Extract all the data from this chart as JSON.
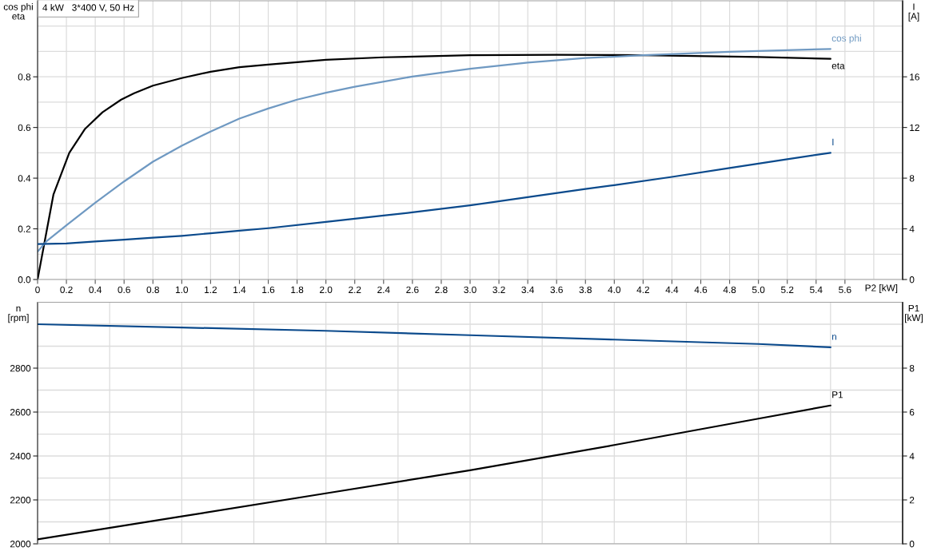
{
  "chart_data": [
    {
      "type": "line",
      "title": "4 kW   3*400 V, 50 Hz",
      "xlabel": "P2 [kW]",
      "ylabel": "cos phi\neta",
      "y2label": "I\n[A]",
      "xlim": [
        0,
        6
      ],
      "xticks": [
        0,
        0.2,
        0.4,
        0.6,
        0.8,
        {
          "value": 1,
          "label": "1.0"
        },
        1.2,
        1.4,
        1.6,
        1.8,
        {
          "value": 2,
          "label": "2.0"
        },
        2.2,
        2.4,
        2.6,
        2.8,
        {
          "value": 3,
          "label": "3.0"
        },
        3.2,
        3.4,
        3.6,
        3.8,
        {
          "value": 4,
          "label": "4.0"
        },
        4.2,
        4.4,
        4.6,
        4.8,
        {
          "value": 5,
          "label": "5.0"
        },
        5.2,
        5.4,
        5.6,
        {
          "value": 5.8,
          "label": null
        }
      ],
      "ylim": [
        0,
        1.1
      ],
      "yticks": [
        {
          "value": 0,
          "label": "0.0"
        },
        {
          "value": 0.1,
          "label": null
        },
        0.2,
        {
          "value": 0.3,
          "label": null
        },
        0.4,
        {
          "value": 0.5,
          "label": null
        },
        0.6,
        {
          "value": 0.7,
          "label": null
        },
        0.8,
        {
          "value": 0.9,
          "label": null
        },
        {
          "value": 1.0,
          "label": null
        }
      ],
      "y2lim": [
        0,
        22
      ],
      "y2ticks": [
        0,
        4,
        8,
        12,
        16
      ],
      "grid": true,
      "series": [
        {
          "name": "eta",
          "color": "#000000",
          "x": [
            0,
            0.11,
            0.22,
            0.33,
            0.45,
            0.58,
            0.67,
            0.8,
            1.0,
            1.2,
            1.4,
            1.6,
            1.8,
            2.0,
            2.4,
            3.0,
            3.6,
            4.0,
            4.2,
            5.0,
            5.5
          ],
          "values": [
            0,
            0.335,
            0.5,
            0.595,
            0.66,
            0.71,
            0.735,
            0.765,
            0.795,
            0.82,
            0.838,
            0.848,
            0.858,
            0.867,
            0.877,
            0.885,
            0.887,
            0.886,
            0.885,
            0.878,
            0.871
          ]
        },
        {
          "name": "cos phi",
          "color": "#6f99c2",
          "x": [
            0,
            0.06,
            0.2,
            0.4,
            0.6,
            0.8,
            1.0,
            1.2,
            1.4,
            1.6,
            1.8,
            2.0,
            2.2,
            2.6,
            3.0,
            3.4,
            3.8,
            4.2,
            4.8,
            5.5
          ],
          "values": [
            0.11,
            0.15,
            0.214,
            0.303,
            0.387,
            0.465,
            0.528,
            0.584,
            0.635,
            0.675,
            0.71,
            0.737,
            0.761,
            0.801,
            0.832,
            0.856,
            0.874,
            0.885,
            0.899,
            0.91
          ]
        },
        {
          "name": "I",
          "color": "#0b4a8c",
          "axis": "y2",
          "x": [
            0,
            0.2,
            0.4,
            0.6,
            0.8,
            1.0,
            1.2,
            1.4,
            1.6,
            2.0,
            2.4,
            2.6,
            3.0,
            3.4,
            3.8,
            4.0,
            4.4,
            4.8,
            5.2,
            5.5
          ],
          "values": [
            2.8,
            2.85,
            3.0,
            3.15,
            3.3,
            3.45,
            3.65,
            3.85,
            4.05,
            4.55,
            5.05,
            5.3,
            5.85,
            6.5,
            7.15,
            7.45,
            8.1,
            8.8,
            9.5,
            10.0
          ]
        }
      ]
    },
    {
      "type": "line",
      "ylabel": "n\n[rpm]",
      "y2label": "P1\n[kW]",
      "tick_labels": "y",
      "xlim": [
        0,
        6
      ],
      "xticks": [
        {
          "value": 0.5,
          "label": null
        },
        {
          "value": 1,
          "label": null
        },
        {
          "value": 1.5,
          "label": null
        },
        {
          "value": 2,
          "label": null
        },
        {
          "value": 2.5,
          "label": null
        },
        {
          "value": 3,
          "label": null
        },
        {
          "value": 3.5,
          "label": null
        },
        {
          "value": 4,
          "label": null
        },
        {
          "value": 4.5,
          "label": null
        },
        {
          "value": 5,
          "label": null
        },
        {
          "value": 5.5,
          "label": null
        }
      ],
      "ylim": [
        2000,
        3100
      ],
      "yticks": [
        2000,
        {
          "value": 2100,
          "label": null
        },
        2200,
        {
          "value": 2300,
          "label": null
        },
        2400,
        {
          "value": 2500,
          "label": null
        },
        2600,
        {
          "value": 2700,
          "label": null
        },
        2800,
        {
          "value": 2900,
          "label": null
        },
        {
          "value": 3000,
          "label": null
        }
      ],
      "y2lim": [
        0,
        11
      ],
      "y2ticks": [
        0,
        2,
        4,
        6,
        8
      ],
      "grid": true,
      "series": [
        {
          "name": "n",
          "color": "#0b4a8c",
          "x": [
            0,
            1,
            2,
            3,
            4,
            5,
            5.5
          ],
          "values": [
            3000,
            2985,
            2970,
            2950,
            2930,
            2910,
            2895
          ]
        },
        {
          "name": "P1",
          "color": "#000000",
          "axis": "y2",
          "x": [
            0,
            1,
            2,
            3,
            4,
            5,
            5.5
          ],
          "values": [
            0.2,
            1.25,
            2.3,
            3.35,
            4.5,
            5.7,
            6.3
          ]
        }
      ]
    }
  ]
}
